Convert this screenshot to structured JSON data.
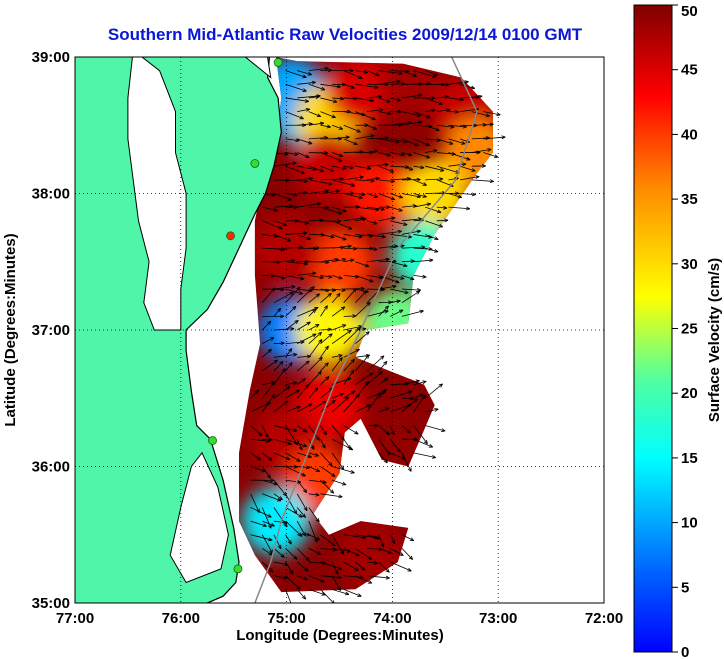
{
  "title": "Southern Mid-Atlantic Raw Velocities 2009/12/14 0100 GMT",
  "x_axis": {
    "label": "Longitude (Degrees:Minutes)",
    "range": [
      -77,
      -72
    ],
    "ticks": [
      {
        "value": -77,
        "label": "77:00"
      },
      {
        "value": -76,
        "label": "76:00"
      },
      {
        "value": -75,
        "label": "75:00"
      },
      {
        "value": -74,
        "label": "74:00"
      },
      {
        "value": -73,
        "label": "73:00"
      },
      {
        "value": -72,
        "label": "72:00"
      }
    ]
  },
  "y_axis": {
    "label": "Latitude (Degrees:Minutes)",
    "range": [
      35,
      39
    ],
    "ticks": [
      {
        "value": 35,
        "label": "35:00"
      },
      {
        "value": 36,
        "label": "36:00"
      },
      {
        "value": 37,
        "label": "37:00"
      },
      {
        "value": 38,
        "label": "38:00"
      },
      {
        "value": 39,
        "label": "39:00"
      }
    ]
  },
  "colorbar": {
    "label": "Surface Velocity (cm/s)",
    "range": [
      0,
      50
    ],
    "ticks": [
      {
        "value": 0,
        "label": "0"
      },
      {
        "value": 5,
        "label": "5"
      },
      {
        "value": 10,
        "label": "10"
      },
      {
        "value": 15,
        "label": "15"
      },
      {
        "value": 20,
        "label": "20"
      },
      {
        "value": 25,
        "label": "25"
      },
      {
        "value": 30,
        "label": "30"
      },
      {
        "value": 35,
        "label": "35"
      },
      {
        "value": 40,
        "label": "40"
      },
      {
        "value": 45,
        "label": "45"
      },
      {
        "value": 50,
        "label": "50"
      }
    ],
    "colormap": "jet"
  },
  "grid": "dotted",
  "colors": {
    "land": "#4ff5a8",
    "coast": "#000000",
    "title": "#0a17d6",
    "station_active": "#33dd33",
    "station_inactive": "#ff2a00",
    "vector": "#000000"
  },
  "stations": [
    {
      "lon": -75.08,
      "lat": 38.96,
      "status": "active"
    },
    {
      "lon": -75.3,
      "lat": 38.22,
      "status": "active"
    },
    {
      "lon": -75.53,
      "lat": 37.69,
      "status": "inactive"
    },
    {
      "lon": -75.7,
      "lat": 36.19,
      "status": "active"
    },
    {
      "lon": -75.46,
      "lat": 35.25,
      "status": "active"
    }
  ],
  "speed_field": [
    {
      "lon": -74.85,
      "lat": 38.6,
      "speed": 12
    },
    {
      "lon": -74.95,
      "lat": 38.75,
      "speed": 10
    },
    {
      "lon": -74.6,
      "lat": 38.55,
      "speed": 30
    },
    {
      "lon": -74.3,
      "lat": 38.75,
      "speed": 45
    },
    {
      "lon": -73.8,
      "lat": 38.8,
      "speed": 48
    },
    {
      "lon": -73.3,
      "lat": 38.6,
      "speed": 46
    },
    {
      "lon": -73.2,
      "lat": 38.3,
      "speed": 36
    },
    {
      "lon": -74.6,
      "lat": 38.2,
      "speed": 46
    },
    {
      "lon": -74.1,
      "lat": 38.0,
      "speed": 42
    },
    {
      "lon": -73.6,
      "lat": 38.0,
      "speed": 30
    },
    {
      "lon": -73.7,
      "lat": 37.55,
      "speed": 18
    },
    {
      "lon": -74.5,
      "lat": 37.5,
      "speed": 40
    },
    {
      "lon": -75.0,
      "lat": 37.6,
      "speed": 47
    },
    {
      "lon": -74.95,
      "lat": 37.0,
      "speed": 8
    },
    {
      "lon": -74.6,
      "lat": 37.0,
      "speed": 28
    },
    {
      "lon": -73.95,
      "lat": 37.05,
      "speed": 22
    },
    {
      "lon": -74.6,
      "lat": 36.45,
      "speed": 44
    },
    {
      "lon": -75.0,
      "lat": 36.2,
      "speed": 47
    },
    {
      "lon": -74.7,
      "lat": 35.9,
      "speed": 40
    },
    {
      "lon": -75.1,
      "lat": 35.6,
      "speed": 14
    },
    {
      "lon": -74.2,
      "lat": 35.35,
      "speed": 48
    },
    {
      "lon": -73.9,
      "lat": 36.2,
      "speed": 49
    }
  ]
}
